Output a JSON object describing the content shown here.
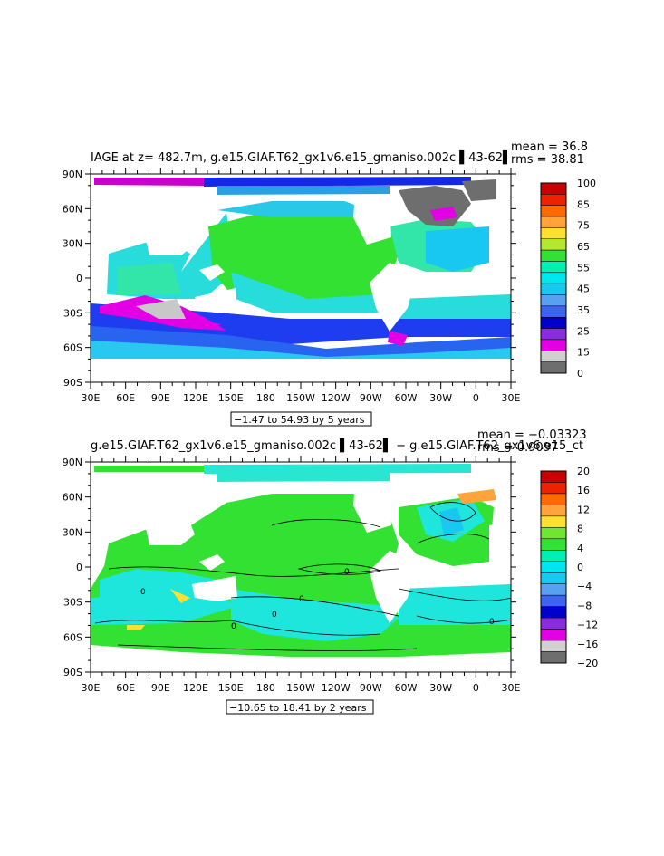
{
  "panels": [
    {
      "title": "IAGE at z= 482.7m, g.e15.GIAF.T62_gx1v6.e15_gmaniso.002c ▌43-62▌",
      "mean_text": "mean = 36.8",
      "rms_text": "rms = 38.81",
      "range_text": "−1.47 to 54.93 by 5 years",
      "colorbar_labels": [
        "100",
        "85",
        "75",
        "65",
        "55",
        "45",
        "35",
        "25",
        "15",
        "0"
      ],
      "colorbar_colors": [
        "#c80000",
        "#ee2200",
        "#ff6a00",
        "#ffa43a",
        "#ffe030",
        "#b4e830",
        "#32e132",
        "#00f0b4",
        "#00e6f0",
        "#19c8f0",
        "#5aa0f0",
        "#3c64f0",
        "#0000cd",
        "#8a2be2",
        "#e400e4",
        "#d0d0d0",
        "#6e6e6e"
      ]
    },
    {
      "title": "g.e15.GIAF.T62_gx1v6.e15_gmaniso.002c ▌43-62▌ − g.e15.GIAF.T62_gx1v6.e15_ct",
      "mean_text": "mean = −0.03323",
      "rms_text": "rms = 0.9097",
      "range_text": "−10.65 to 18.41 by 2 years",
      "colorbar_labels": [
        "20",
        "16",
        "12",
        "8",
        "4",
        "0",
        "−4",
        "−8",
        "−12",
        "−16",
        "−20"
      ],
      "colorbar_colors": [
        "#c80000",
        "#ee2200",
        "#ff6a00",
        "#ffa43a",
        "#ffe030",
        "#6ee632",
        "#32e132",
        "#00f0b4",
        "#00e6f0",
        "#19c8f0",
        "#5aa0f0",
        "#3c64f0",
        "#0000cd",
        "#8a2be2",
        "#e400e4",
        "#d0d0d0",
        "#6e6e6e"
      ]
    }
  ],
  "chart_data": [
    {
      "type": "heatmap",
      "title": "IAGE at z= 482.7m, g.e15.GIAF.T62_gx1v6.e15_gmaniso.002c ▌43-62▌",
      "x_tick_labels": [
        "30E",
        "60E",
        "90E",
        "120E",
        "150E",
        "180",
        "150W",
        "120W",
        "90W",
        "60W",
        "30W",
        "0",
        "30E"
      ],
      "y_tick_labels": [
        "90N",
        "60N",
        "30N",
        "0",
        "30S",
        "60S",
        "90S"
      ],
      "xlim": [
        30,
        390
      ],
      "ylim": [
        -90,
        90
      ],
      "mean": 36.8,
      "rms": 38.81,
      "data_min": -1.47,
      "data_max": 54.93,
      "contour_interval": 5,
      "units": "years",
      "colorbar_ticks": [
        100,
        85,
        75,
        65,
        55,
        45,
        35,
        25,
        15,
        0
      ]
    },
    {
      "type": "heatmap",
      "title": "g.e15.GIAF.T62_gx1v6.e15_gmaniso.002c ▌43-62▌ − g.e15.GIAF.T62_gx1v6.e15_ct",
      "x_tick_labels": [
        "30E",
        "60E",
        "90E",
        "120E",
        "150E",
        "180",
        "150W",
        "120W",
        "90W",
        "60W",
        "30W",
        "0",
        "30E"
      ],
      "y_tick_labels": [
        "90N",
        "60N",
        "30N",
        "0",
        "30S",
        "60S",
        "90S"
      ],
      "xlim": [
        30,
        390
      ],
      "ylim": [
        -90,
        90
      ],
      "mean": -0.03323,
      "rms": 0.9097,
      "data_min": -10.65,
      "data_max": 18.41,
      "contour_interval": 2,
      "contour_labels": [
        "0"
      ],
      "units": "years",
      "colorbar_ticks": [
        20,
        16,
        12,
        8,
        4,
        0,
        -4,
        -8,
        -12,
        -16,
        -20
      ]
    }
  ]
}
